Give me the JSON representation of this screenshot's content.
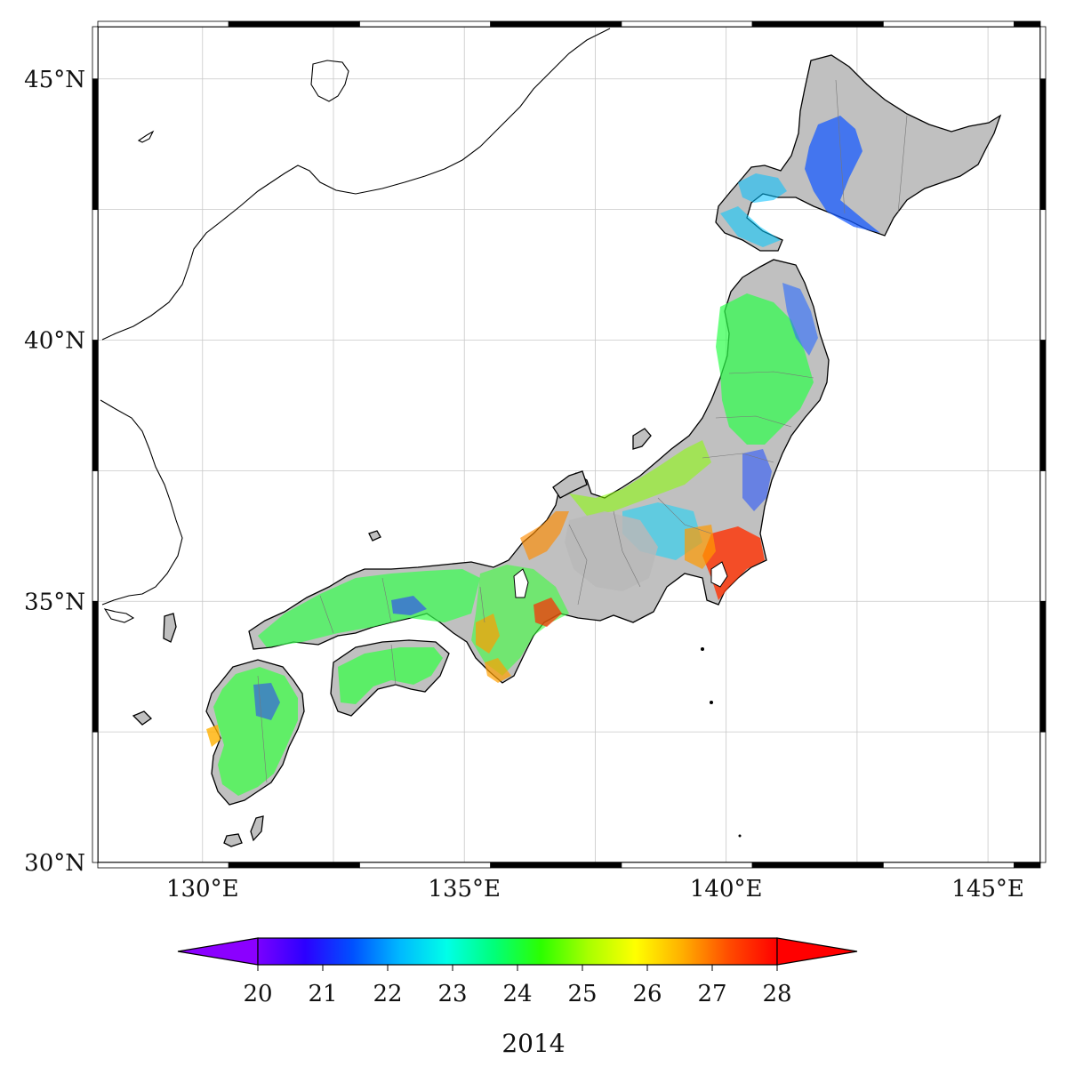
{
  "lat_labels": [
    "30°N",
    "35°N",
    "40°N",
    "45°N"
  ],
  "lon_labels": [
    "130°E",
    "135°E",
    "140°E",
    "145°E"
  ],
  "extent": {
    "lon_min": 128,
    "lon_max": 146,
    "lat_min": 30,
    "lat_max": 46
  },
  "colorbar": {
    "min": 20,
    "max": 28,
    "ticks": [
      "20",
      "21",
      "22",
      "23",
      "24",
      "25",
      "26",
      "27",
      "28"
    ],
    "colors": [
      "#7a00ff",
      "#2c00ff",
      "#0050ff",
      "#00b8ff",
      "#00ffe8",
      "#00ff7a",
      "#2cff00",
      "#a8ff00",
      "#ffff00",
      "#ffae00",
      "#ff4a00",
      "#ff0000"
    ],
    "extend_min_color": "#8b00ff",
    "extend_max_color": "#ff0000"
  },
  "year": "2014",
  "colors": {
    "land_nodata": "#c0c0c0",
    "grid": "#c8c8c8",
    "frame": "#000000"
  }
}
